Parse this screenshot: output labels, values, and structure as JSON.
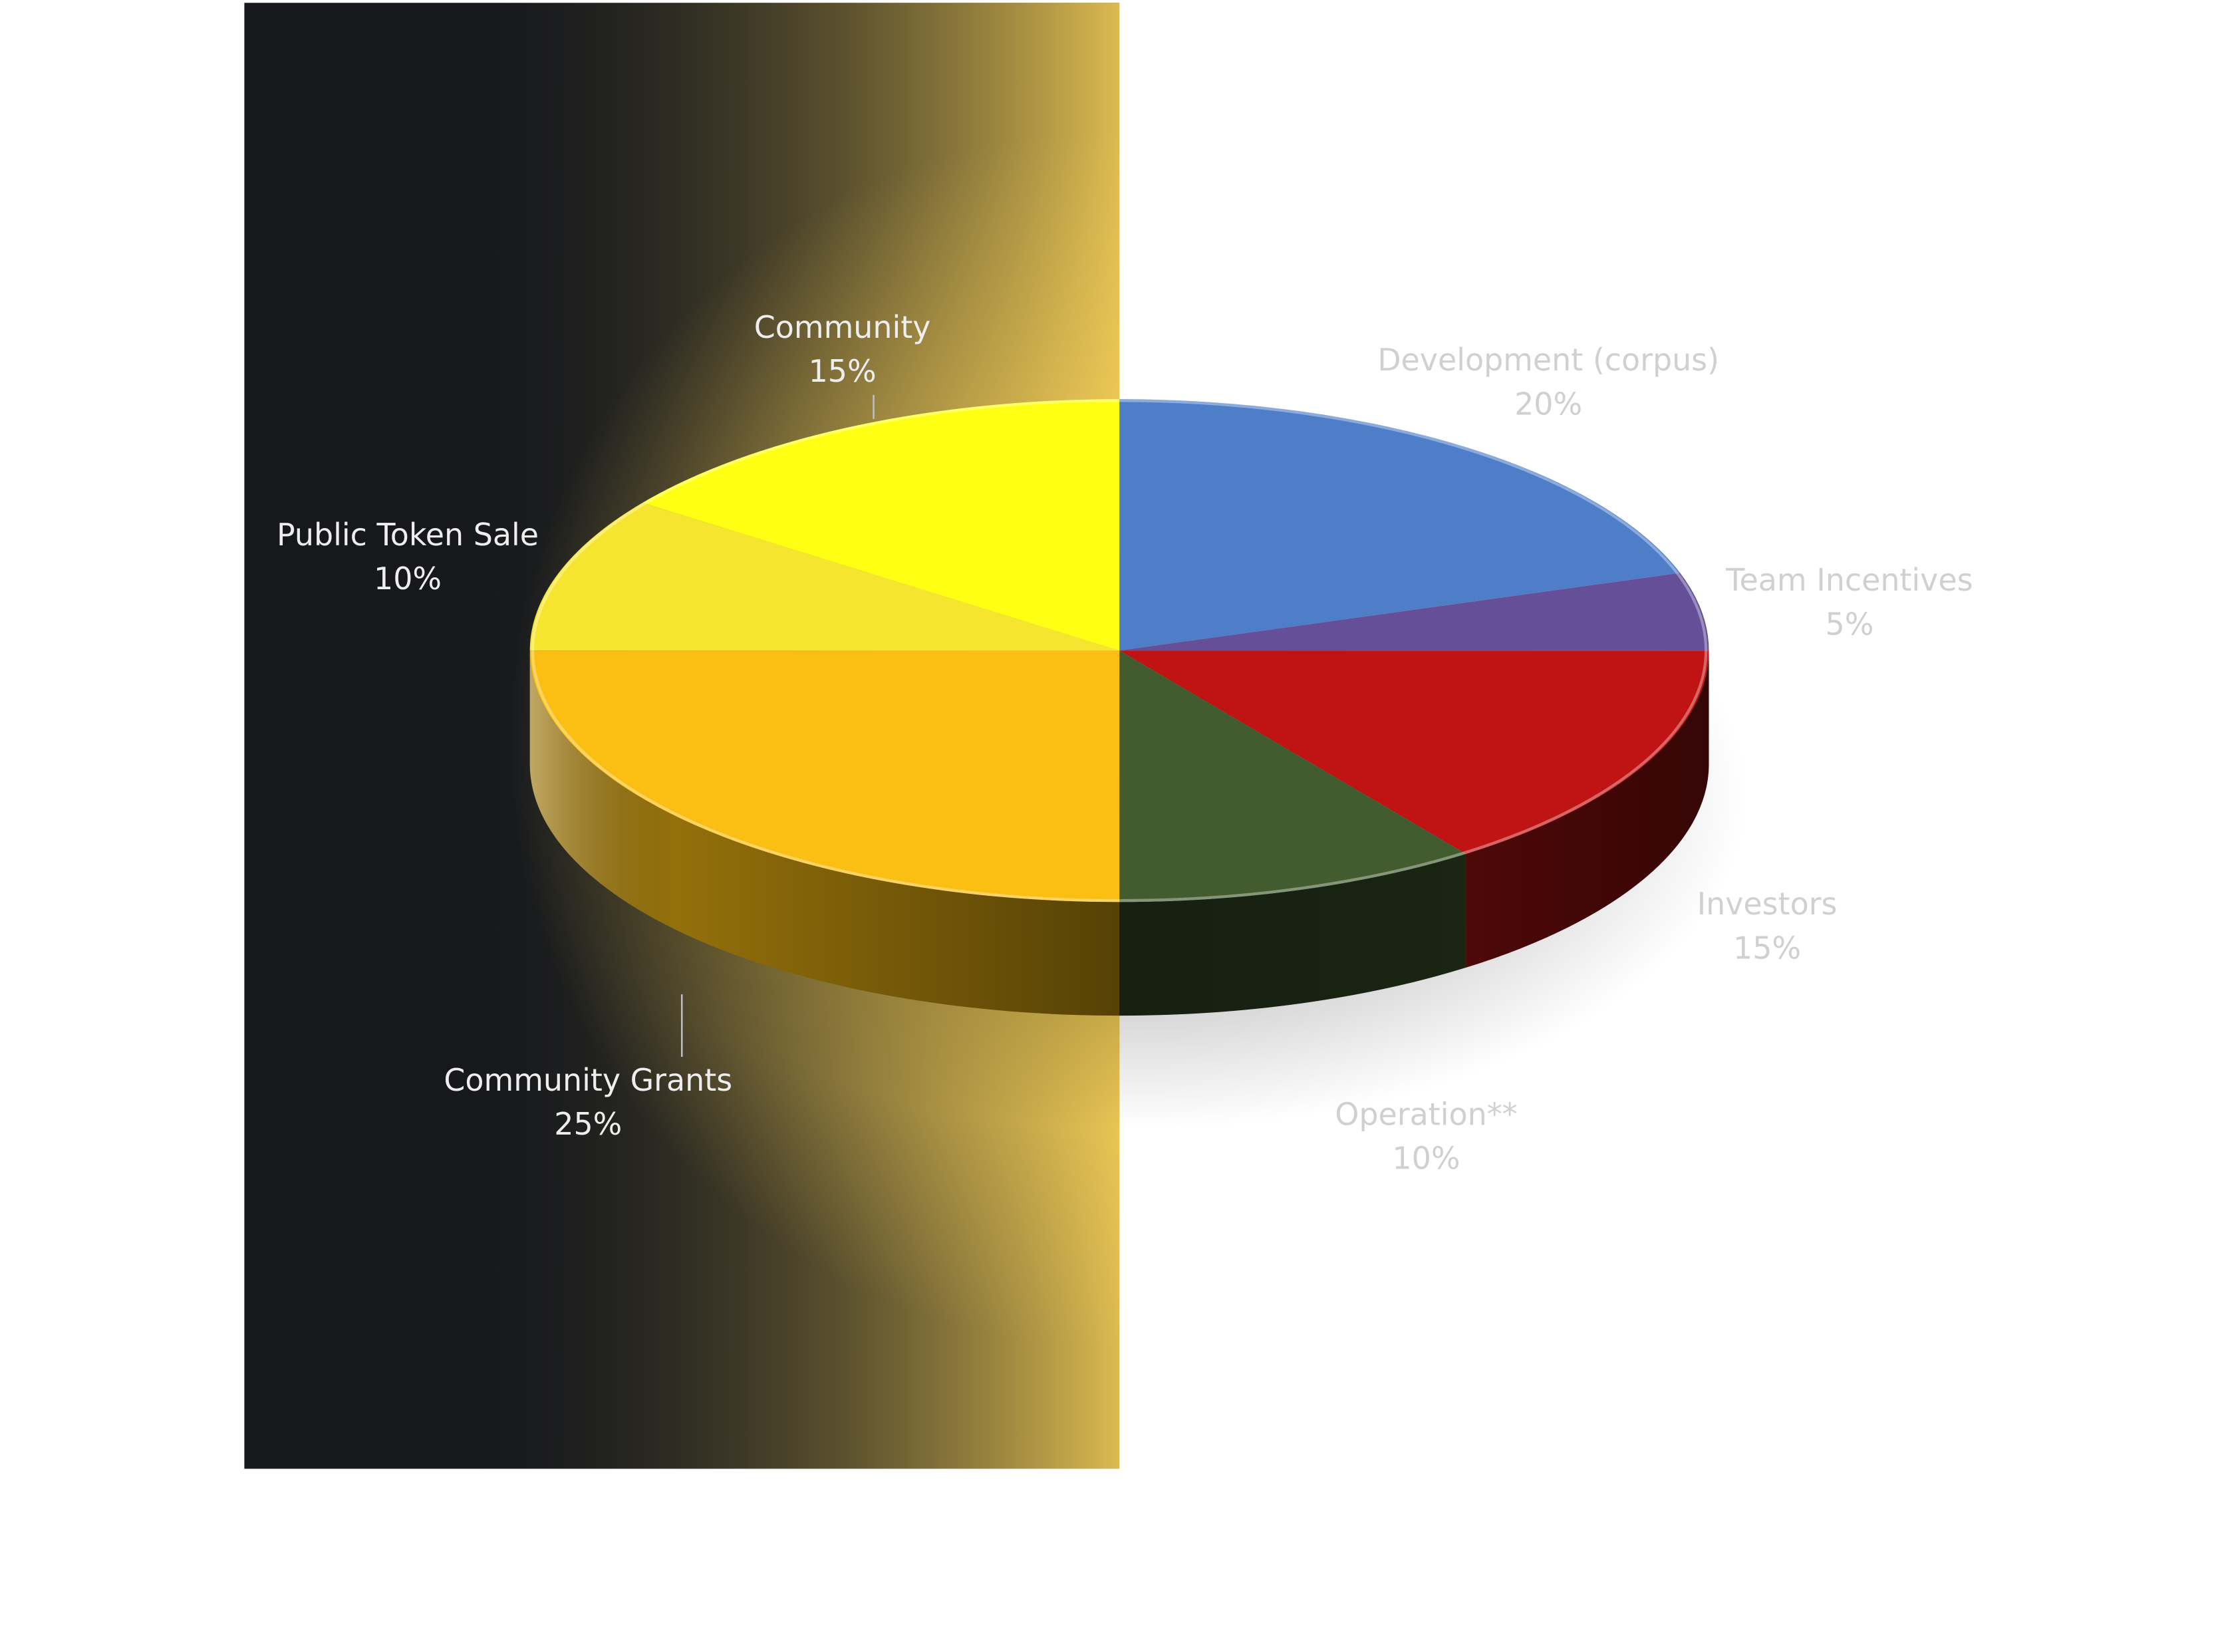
{
  "chart_data": {
    "type": "pie",
    "variant": "3d",
    "title": "",
    "slices": [
      {
        "label": "Development (corpus)",
        "value": 20,
        "value_label": "20%",
        "color": "#4f7ec8"
      },
      {
        "label": "Team Incentives",
        "value": 5,
        "value_label": "5%",
        "color": "#644f98"
      },
      {
        "label": "Investors",
        "value": 15,
        "value_label": "15%",
        "color": "#c01414"
      },
      {
        "label": "Operation**",
        "value": 10,
        "value_label": "10%",
        "color": "#425c30"
      },
      {
        "label": "Community Grants",
        "value": 25,
        "value_label": "25%",
        "color": "#fbbe12"
      },
      {
        "label": "Public Token Sale",
        "value": 10,
        "value_label": "10%",
        "color": "#f6e52e"
      },
      {
        "label": "Community",
        "value": 15,
        "value_label": "15%",
        "color": "#ffff14"
      }
    ],
    "label_colors": {
      "on_dark_panel": "#eeeeee",
      "on_white": "#d0d0d0"
    },
    "background": {
      "panel_dark": "#16181c",
      "glow": "#ffd75a",
      "page": "#ffffff"
    }
  }
}
